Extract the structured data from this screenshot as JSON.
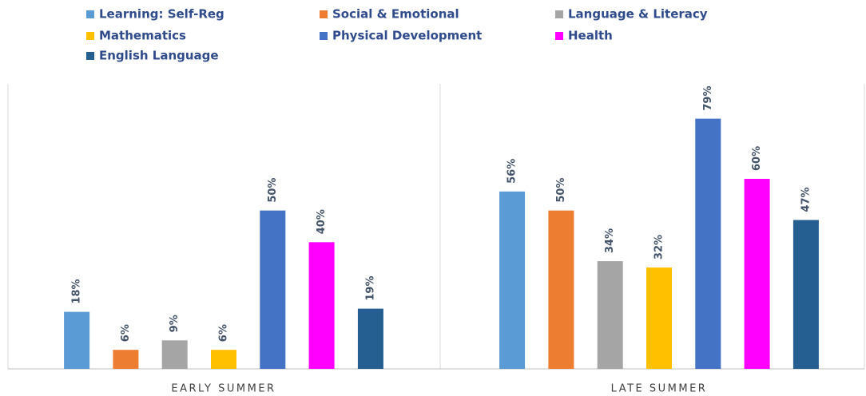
{
  "chart_data": {
    "type": "bar",
    "categories": [
      "EARLY SUMMER",
      "LATE SUMMER"
    ],
    "series": [
      {
        "name": "Learning: Self-Reg",
        "color": "#5b9bd5",
        "values": [
          18,
          56
        ],
        "value_labels": [
          "18%",
          "56%"
        ]
      },
      {
        "name": "Social & Emotional",
        "color": "#ed7d31",
        "values": [
          6,
          50
        ],
        "value_labels": [
          "6%",
          "50%"
        ]
      },
      {
        "name": "Language & Literacy",
        "color": "#a5a5a5",
        "values": [
          9,
          34
        ],
        "value_labels": [
          "9%",
          "34%"
        ]
      },
      {
        "name": "Mathematics",
        "color": "#ffc000",
        "values": [
          6,
          32
        ],
        "value_labels": [
          "6%",
          "32%"
        ]
      },
      {
        "name": "Physical Development",
        "color": "#4472c4",
        "values": [
          50,
          79
        ],
        "value_labels": [
          "50%",
          "79%"
        ]
      },
      {
        "name": "Health",
        "color": "#ff00ff",
        "values": [
          40,
          60
        ],
        "value_labels": [
          "40%",
          "60%"
        ]
      },
      {
        "name": "English Language",
        "color": "#255e91",
        "values": [
          19,
          47
        ],
        "value_labels": [
          "19%",
          "47%"
        ]
      }
    ],
    "ylim": [
      0,
      90
    ]
  }
}
